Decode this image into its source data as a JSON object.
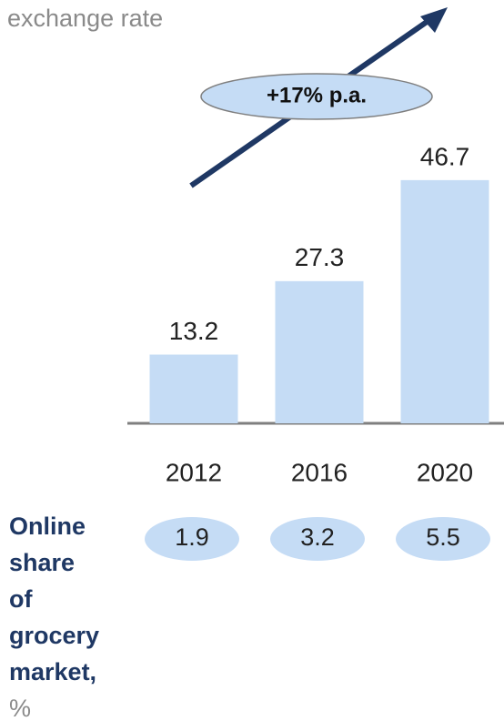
{
  "chart_data": {
    "type": "bar",
    "header": "exchange rate",
    "annotation": "+17% p.a.",
    "categories": [
      "2012",
      "2016",
      "2020"
    ],
    "values": [
      13.2,
      27.3,
      46.7
    ],
    "color": "#c5dcf5",
    "share_label_lines": [
      "Online",
      "share",
      "of",
      "grocery",
      "market,",
      "%"
    ],
    "share_values": [
      1.9,
      3.2,
      5.5
    ]
  }
}
